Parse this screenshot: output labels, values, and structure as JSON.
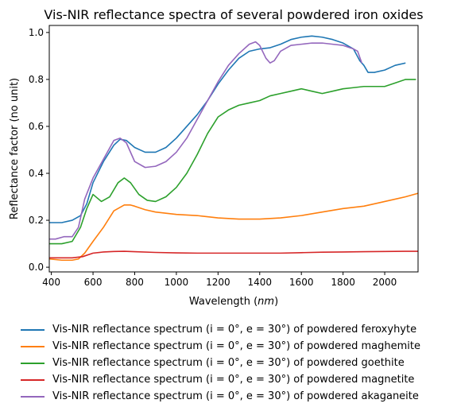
{
  "chart_data": {
    "type": "line",
    "title": "Vis-NIR reflectance spectra of several powdered iron oxides",
    "xlabel_prefix": "Wavelength (",
    "xlabel_unit": "nm",
    "xlabel_suffix": ")",
    "ylabel": "Reflectance factor (no unit)",
    "xlim": [
      390,
      2160
    ],
    "ylim": [
      -0.02,
      1.03
    ],
    "xticks": [
      400,
      600,
      800,
      1000,
      1200,
      1400,
      1600,
      1800,
      2000
    ],
    "yticks": [
      0.0,
      0.2,
      0.4,
      0.6,
      0.8,
      1.0
    ],
    "ytick_labels": [
      "0.0",
      "0.2",
      "0.4",
      "0.6",
      "0.8",
      "1.0"
    ],
    "grid": false,
    "legend_position": "below",
    "series": [
      {
        "name": "Vis-NIR reflectance spectrum (i = 0°, e = 30°) of powdered feroxyhyte",
        "color": "#1f77b4",
        "x": [
          390,
          450,
          500,
          540,
          570,
          600,
          650,
          700,
          730,
          760,
          800,
          850,
          900,
          950,
          1000,
          1050,
          1100,
          1150,
          1200,
          1250,
          1300,
          1350,
          1400,
          1450,
          1500,
          1550,
          1600,
          1650,
          1700,
          1750,
          1800,
          1850,
          1880,
          1900,
          1920,
          1950,
          2000,
          2050,
          2100
        ],
        "y": [
          0.19,
          0.19,
          0.2,
          0.22,
          0.27,
          0.36,
          0.45,
          0.52,
          0.545,
          0.54,
          0.51,
          0.49,
          0.49,
          0.51,
          0.55,
          0.6,
          0.65,
          0.71,
          0.78,
          0.84,
          0.89,
          0.92,
          0.93,
          0.935,
          0.95,
          0.97,
          0.98,
          0.985,
          0.98,
          0.97,
          0.955,
          0.93,
          0.88,
          0.86,
          0.83,
          0.83,
          0.84,
          0.86,
          0.87
        ]
      },
      {
        "name": "Vis-NIR reflectance spectrum (i = 0°, e = 30°) of powdered maghemite",
        "color": "#ff7f0e",
        "x": [
          390,
          450,
          500,
          530,
          560,
          600,
          650,
          700,
          750,
          780,
          800,
          850,
          900,
          1000,
          1100,
          1200,
          1300,
          1400,
          1500,
          1600,
          1700,
          1800,
          1900,
          2000,
          2100,
          2160
        ],
        "y": [
          0.035,
          0.03,
          0.03,
          0.035,
          0.06,
          0.11,
          0.17,
          0.24,
          0.265,
          0.265,
          0.26,
          0.245,
          0.235,
          0.225,
          0.22,
          0.21,
          0.205,
          0.205,
          0.21,
          0.22,
          0.235,
          0.25,
          0.26,
          0.28,
          0.3,
          0.315
        ]
      },
      {
        "name": "Vis-NIR reflectance spectrum (i = 0°, e = 30°) of powdered goethite",
        "color": "#2ca02c",
        "x": [
          390,
          450,
          500,
          540,
          570,
          600,
          640,
          680,
          720,
          750,
          780,
          820,
          860,
          900,
          950,
          1000,
          1050,
          1100,
          1150,
          1200,
          1250,
          1300,
          1350,
          1400,
          1450,
          1500,
          1550,
          1600,
          1650,
          1700,
          1750,
          1800,
          1850,
          1900,
          1950,
          2000,
          2050,
          2100,
          2150
        ],
        "y": [
          0.1,
          0.1,
          0.11,
          0.17,
          0.25,
          0.31,
          0.28,
          0.3,
          0.36,
          0.38,
          0.36,
          0.31,
          0.285,
          0.28,
          0.3,
          0.34,
          0.4,
          0.48,
          0.57,
          0.64,
          0.67,
          0.69,
          0.7,
          0.71,
          0.73,
          0.74,
          0.75,
          0.76,
          0.75,
          0.74,
          0.75,
          0.76,
          0.765,
          0.77,
          0.77,
          0.77,
          0.785,
          0.8,
          0.8
        ]
      },
      {
        "name": "Vis-NIR reflectance spectrum (i = 0°, e = 30°) of powdered magnetite",
        "color": "#d62728",
        "x": [
          390,
          450,
          500,
          550,
          600,
          650,
          700,
          750,
          800,
          900,
          1000,
          1100,
          1200,
          1300,
          1400,
          1500,
          1600,
          1700,
          1800,
          1900,
          2000,
          2100,
          2160
        ],
        "y": [
          0.04,
          0.04,
          0.04,
          0.045,
          0.06,
          0.065,
          0.067,
          0.068,
          0.066,
          0.063,
          0.061,
          0.06,
          0.06,
          0.06,
          0.06,
          0.06,
          0.062,
          0.064,
          0.065,
          0.066,
          0.067,
          0.068,
          0.068
        ]
      },
      {
        "name": "Vis-NIR reflectance spectrum (i = 0°, e = 30°) of powdered akaganeite",
        "color": "#9467bd",
        "x": [
          390,
          420,
          460,
          500,
          530,
          560,
          600,
          650,
          700,
          730,
          760,
          800,
          850,
          900,
          950,
          1000,
          1050,
          1100,
          1150,
          1200,
          1250,
          1300,
          1350,
          1380,
          1400,
          1430,
          1450,
          1470,
          1500,
          1550,
          1600,
          1650,
          1700,
          1750,
          1800,
          1850,
          1870,
          1890
        ],
        "y": [
          0.12,
          0.12,
          0.13,
          0.13,
          0.17,
          0.29,
          0.38,
          0.46,
          0.54,
          0.55,
          0.53,
          0.45,
          0.425,
          0.43,
          0.45,
          0.49,
          0.55,
          0.63,
          0.71,
          0.79,
          0.86,
          0.91,
          0.95,
          0.96,
          0.945,
          0.89,
          0.87,
          0.88,
          0.92,
          0.945,
          0.95,
          0.955,
          0.955,
          0.95,
          0.945,
          0.93,
          0.92,
          0.87
        ]
      }
    ]
  }
}
